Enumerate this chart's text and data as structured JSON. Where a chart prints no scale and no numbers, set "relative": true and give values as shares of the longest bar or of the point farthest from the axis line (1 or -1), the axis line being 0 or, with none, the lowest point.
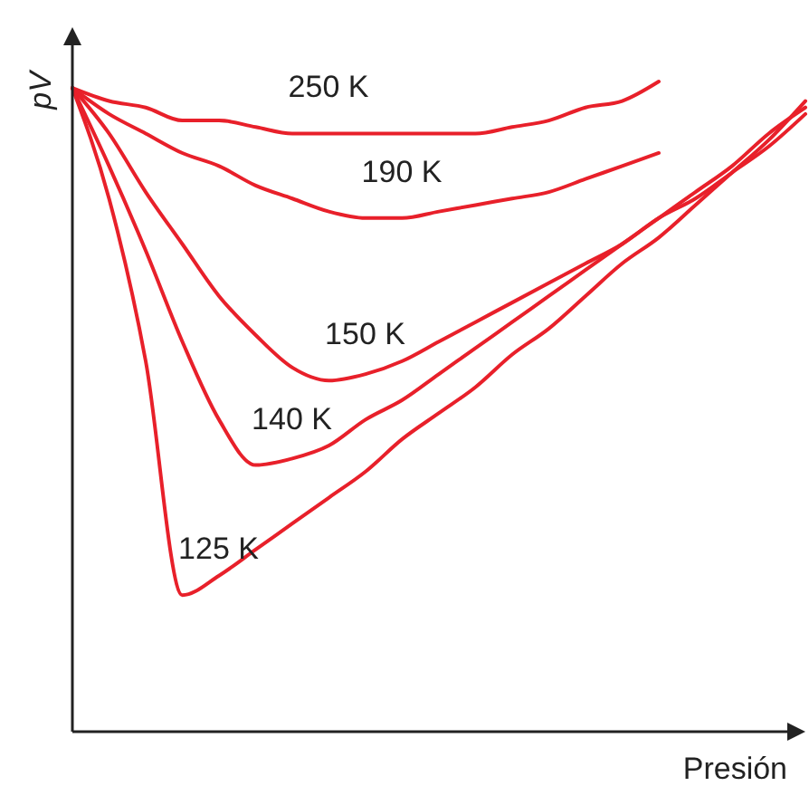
{
  "chart_data": {
    "type": "line",
    "relative": true,
    "xlabel": "Presión",
    "ylabel": "pV",
    "categories": [
      null,
      null,
      null,
      null,
      null,
      null,
      null,
      null,
      null,
      null,
      null,
      null,
      null,
      null,
      null,
      null,
      null,
      null,
      null,
      null,
      null
    ],
    "series": [
      {
        "name": "250 K",
        "color": "#e8202a",
        "values": [
          0.99,
          0.97,
          0.96,
          0.94,
          0.94,
          0.93,
          0.92,
          0.92,
          0.92,
          0.92,
          0.92,
          0.92,
          0.93,
          0.94,
          0.96,
          0.97,
          1.0,
          null,
          null,
          null,
          null
        ]
      },
      {
        "name": "190 K",
        "color": "#e8202a",
        "values": [
          0.99,
          0.95,
          0.92,
          0.89,
          0.87,
          0.84,
          0.82,
          0.8,
          0.79,
          0.79,
          0.8,
          0.81,
          0.82,
          0.83,
          0.85,
          0.87,
          0.89,
          null,
          null,
          null,
          null
        ]
      },
      {
        "name": "150 K",
        "color": "#e8202a",
        "values": [
          0.99,
          0.92,
          0.83,
          0.75,
          0.67,
          0.61,
          0.56,
          0.54,
          0.55,
          0.57,
          0.6,
          0.63,
          0.66,
          0.69,
          0.72,
          0.75,
          0.79,
          0.82,
          0.86,
          0.9,
          0.95
        ]
      },
      {
        "name": "140 K",
        "color": "#e8202a",
        "values": [
          0.99,
          0.87,
          0.74,
          0.6,
          0.48,
          0.41,
          0.42,
          0.44,
          0.48,
          0.51,
          0.55,
          0.59,
          0.63,
          0.67,
          0.71,
          0.75,
          0.79,
          0.83,
          0.87,
          0.92,
          0.96
        ]
      },
      {
        "name": "125 K",
        "color": "#e8202a",
        "values": [
          0.99,
          0.82,
          0.57,
          0.21,
          0.24,
          0.28,
          0.32,
          0.36,
          0.4,
          0.45,
          0.49,
          0.53,
          0.58,
          0.62,
          0.67,
          0.72,
          0.76,
          0.81,
          0.86,
          0.91,
          0.97
        ]
      }
    ]
  }
}
